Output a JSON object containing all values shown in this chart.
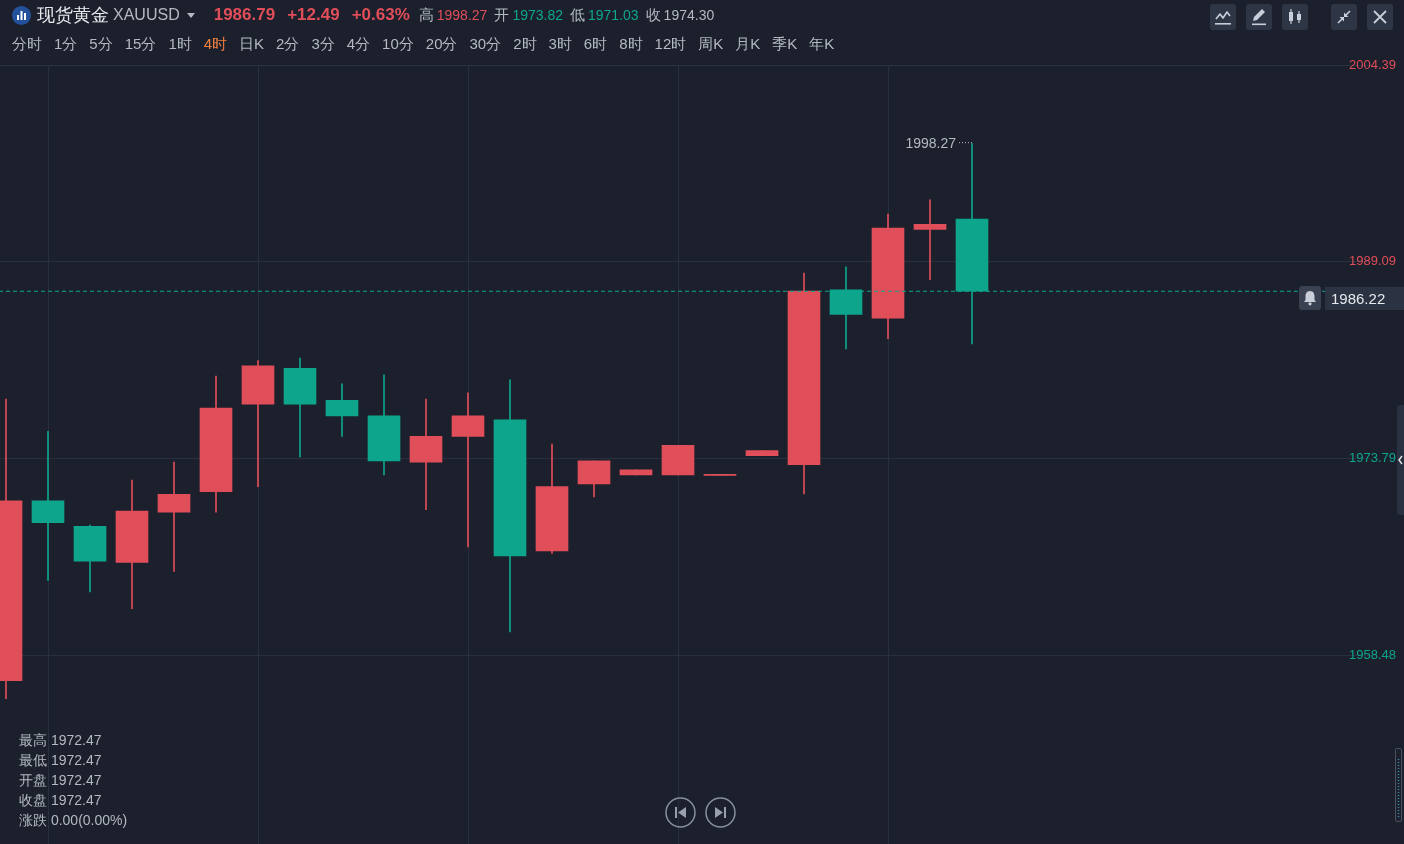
{
  "chart_data": {
    "type": "candlestick",
    "title": "现货黄金 XAUUSD",
    "categories": [
      null,
      null,
      null,
      null,
      null,
      null,
      null,
      null,
      null,
      null,
      null,
      null,
      null,
      null,
      null,
      null,
      null,
      null,
      null,
      null,
      null,
      null,
      null,
      null,
      null,
      null,
      null,
      null,
      null,
      null,
      null,
      null,
      null
    ],
    "ohlc": [
      [
        1956.5,
        1978.4,
        1955.1,
        1970.5
      ],
      [
        1970.5,
        1975.9,
        1964.3,
        1968.8
      ],
      [
        1968.5,
        1968.6,
        1963.4,
        1965.8
      ],
      [
        1965.7,
        1972.1,
        1962.1,
        1969.7
      ],
      [
        1969.6,
        1973.5,
        1965.0,
        1971.0
      ],
      [
        1971.2,
        1980.2,
        1969.6,
        1977.7
      ],
      [
        1978.0,
        1981.4,
        1971.6,
        1981.0
      ],
      [
        1980.8,
        1981.6,
        1973.9,
        1978.0
      ],
      [
        1978.3,
        1979.6,
        1975.5,
        1977.1
      ],
      [
        1977.1,
        1980.3,
        1972.5,
        1973.6
      ],
      [
        1973.5,
        1978.4,
        1969.8,
        1975.5
      ],
      [
        1975.5,
        1978.9,
        1966.9,
        1977.1
      ],
      [
        1976.8,
        1979.9,
        1960.3,
        1966.2
      ],
      [
        1966.6,
        1974.9,
        1966.4,
        1971.6
      ],
      [
        1971.8,
        1973.6,
        1970.8,
        1973.6
      ],
      [
        1972.5,
        1972.9,
        1972.5,
        1972.9
      ],
      [
        1972.5,
        1974.8,
        1972.5,
        1974.8
      ],
      [
        1972.47,
        1972.47,
        1972.47,
        1972.47
      ],
      [
        1974.0,
        1974.4,
        1974.0,
        1974.4
      ],
      [
        1973.3,
        1988.2,
        1971.03,
        1986.8
      ],
      [
        1986.9,
        1988.7,
        1982.3,
        1985.0
      ],
      [
        1984.7,
        1992.8,
        1983.1,
        1991.7
      ],
      [
        1991.6,
        1993.9,
        1987.7,
        1992.0
      ],
      [
        1992.4,
        1998.27,
        1982.7,
        1986.79
      ],
      null,
      null,
      null,
      null,
      null,
      null,
      null,
      null,
      null
    ],
    "colors": [
      "#e04e59",
      "#0ea58d",
      "#0ea58d",
      "#e04e59",
      "#e04e59",
      "#e04e59",
      "#e04e59",
      "#0ea58d",
      "#0ea58d",
      "#0ea58d",
      "#e04e59",
      "#e04e59",
      "#0ea58d",
      "#e04e59",
      "#e04e59",
      "#e04e59",
      "#e04e59",
      "#e04e59",
      "#e04e59",
      "#e04e59",
      "#0ea58d",
      "#e04e59",
      "#e04e59",
      "#0ea58d",
      null,
      null,
      null,
      null,
      null,
      null,
      null,
      null,
      null
    ],
    "ylim": [
      1943.8,
      2004.39
    ],
    "yticks": [
      1958.48,
      1973.79,
      1989.09,
      2004.39
    ],
    "grid": true,
    "tick_labels": "y",
    "ref_lines": [
      {
        "axis": "y",
        "value": 1986.79,
        "color": "#0ea58d",
        "line_style": "dashed"
      }
    ],
    "annotations": [
      "1986.79",
      "+12.49",
      "+0.63%",
      "高 1998.27",
      "开 1973.82",
      "低 1971.03",
      "收 1974.30",
      "分时",
      "1分",
      "5分",
      "15分",
      "1时",
      "4时",
      "日K",
      "2分",
      "3分",
      "4分",
      "10分",
      "20分",
      "30分",
      "2时",
      "3时",
      "6时",
      "8时",
      "12时",
      "周K",
      "月K",
      "季K",
      "年K",
      "最高 1972.47",
      "最低 1972.47",
      "开盘 1972.47",
      "收盘 1972.47",
      "涨跌 0.00(0.00%)",
      "1986.22",
      "1998.27"
    ]
  }
}
